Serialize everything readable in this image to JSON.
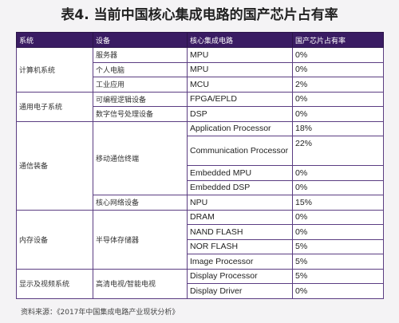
{
  "title": "表4. 当前中国核心集成电路的国产芯片占有率",
  "headers": [
    "系统",
    "设备",
    "核心集成电路",
    "国产芯片占有率"
  ],
  "systems": {
    "computer": "计算机系统",
    "general": "通用电子系统",
    "comm": "通信装备",
    "memory": "内存设备",
    "display": "显示及视频系统"
  },
  "devices": {
    "server": "服务器",
    "pc": "个人电脑",
    "industrial": "工业应用",
    "programmable": "可编程逻辑设备",
    "dsp": "数字信号处理设备",
    "mobile": "移动通信终端",
    "network": "核心网络设备",
    "semi": "半导体存储器",
    "tv": "高清电视/智能电视"
  },
  "rows": [
    {
      "circuit": "MPU",
      "rate": "0%"
    },
    {
      "circuit": "MPU",
      "rate": "0%"
    },
    {
      "circuit": "MCU",
      "rate": "2%"
    },
    {
      "circuit": "FPGA/EPLD",
      "rate": "0%"
    },
    {
      "circuit": "DSP",
      "rate": "0%"
    },
    {
      "circuit": "Application Processor",
      "rate": "18%"
    },
    {
      "circuit": "Communication Processor",
      "rate": "22%"
    },
    {
      "circuit": "Embedded MPU",
      "rate": "0%"
    },
    {
      "circuit": "Embedded DSP",
      "rate": "0%"
    },
    {
      "circuit": "NPU",
      "rate": "15%"
    },
    {
      "circuit": "DRAM",
      "rate": "0%"
    },
    {
      "circuit": "NAND FLASH",
      "rate": "0%"
    },
    {
      "circuit": "NOR FLASH",
      "rate": "5%"
    },
    {
      "circuit": "Image Processor",
      "rate": "5%"
    },
    {
      "circuit": "Display Processor",
      "rate": "5%"
    },
    {
      "circuit": "Display Driver",
      "rate": "0%"
    }
  ],
  "source": "资料来源：《2017年中国集成电路产业现状分析》"
}
